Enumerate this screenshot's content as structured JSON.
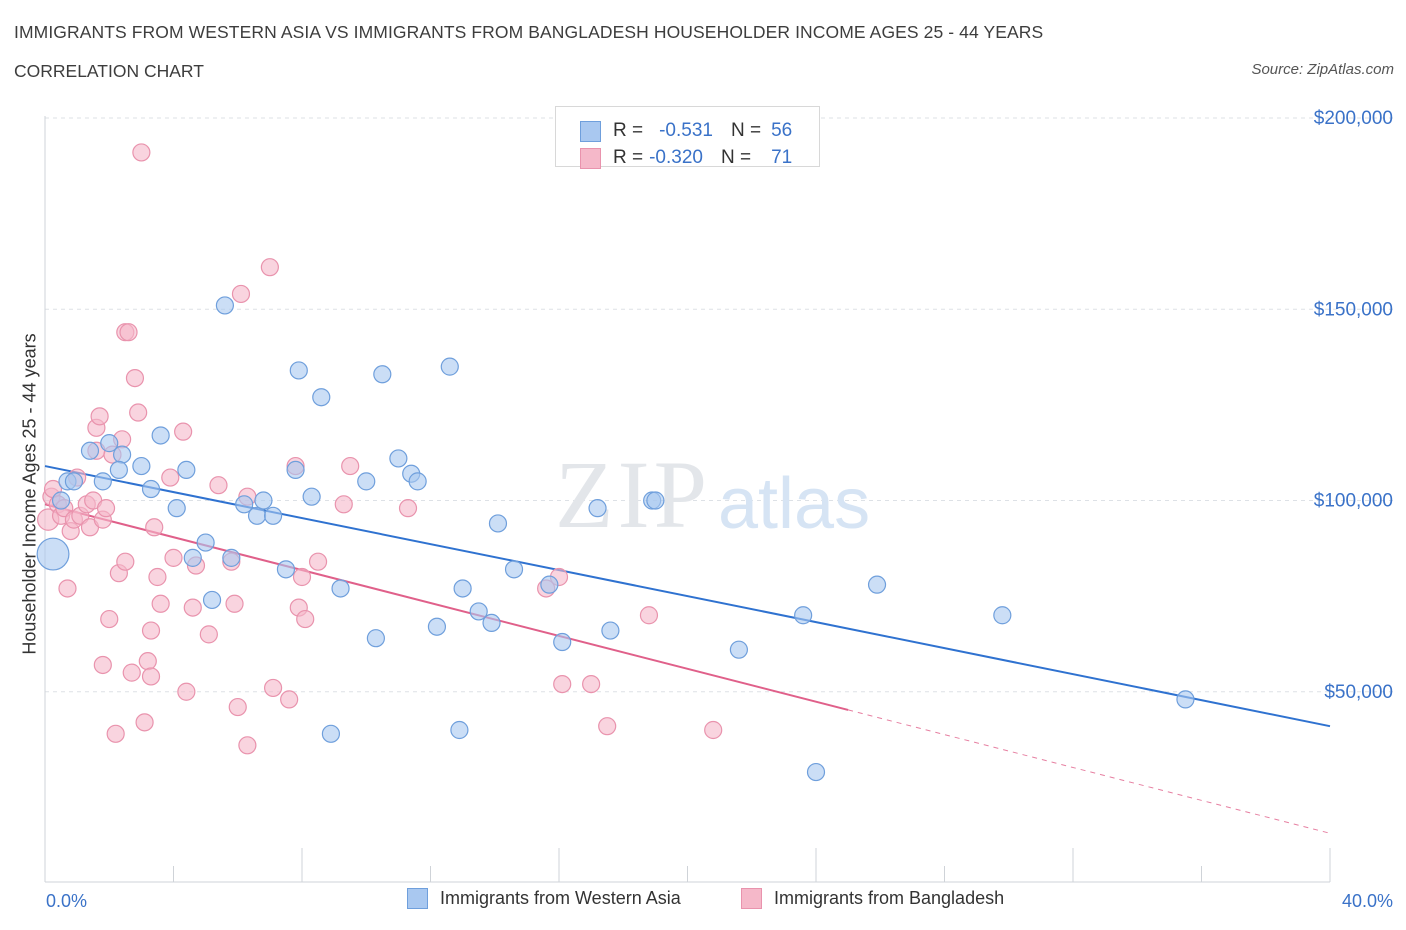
{
  "header": {
    "title": "IMMIGRANTS FROM WESTERN ASIA VS IMMIGRANTS FROM BANGLADESH HOUSEHOLDER INCOME AGES 25 - 44 YEARS",
    "subtitle": "CORRELATION CHART",
    "source": "Source: ZipAtlas.com"
  },
  "watermark": {
    "zip": "ZIP",
    "atlas": "atlas"
  },
  "legend_top": {
    "rows": [
      {
        "r_label": "R =",
        "r_value": "-0.531",
        "n_label": "N =",
        "n_value": "56",
        "color": "#a9c8f0"
      },
      {
        "r_label": "R =",
        "r_value": "-0.320",
        "n_label": "N =",
        "n_value": "71",
        "color": "#f5b8c9"
      }
    ]
  },
  "colors": {
    "blue_fill": "#a9c8f0",
    "blue_stroke": "#6f9fdc",
    "blue_line": "#2f72d0",
    "pink_fill": "#f5b8c9",
    "pink_stroke": "#e993ad",
    "pink_line": "#e0608a",
    "grid": "#dde1e6",
    "axis_label": "#3a72c8"
  },
  "chart_data": {
    "type": "scatter",
    "title": "IMMIGRANTS FROM WESTERN ASIA VS IMMIGRANTS FROM BANGLADESH HOUSEHOLDER INCOME AGES 25 - 44 YEARS",
    "xlabel": "",
    "ylabel": "Householder Income Ages 25 - 44 years",
    "xlim": [
      0,
      40
    ],
    "ylim": [
      0,
      200000
    ],
    "x_tick_labels": [
      "0.0%",
      "40.0%"
    ],
    "y_ticks": [
      50000,
      100000,
      150000,
      200000
    ],
    "y_tick_labels": [
      "$50,000",
      "$100,000",
      "$150,000",
      "$200,000"
    ],
    "grid": true,
    "legend_position": "bottom",
    "series": [
      {
        "name": "Immigrants from Western Asia",
        "color": "#a9c8f0",
        "trend": {
          "x": [
            0,
            40
          ],
          "y": [
            109000,
            41000
          ],
          "dashed_from_x": null
        },
        "points": [
          [
            0.25,
            86000,
            3
          ],
          [
            0.5,
            100000,
            1
          ],
          [
            0.7,
            105000,
            1
          ],
          [
            1.8,
            105000,
            1
          ],
          [
            1.4,
            113000,
            1
          ],
          [
            2.0,
            115000,
            1
          ],
          [
            2.4,
            112000,
            1
          ],
          [
            2.3,
            108000,
            1
          ],
          [
            3.0,
            109000,
            1
          ],
          [
            3.3,
            103000,
            1
          ],
          [
            3.6,
            117000,
            1
          ],
          [
            4.1,
            98000,
            1
          ],
          [
            4.4,
            108000,
            1
          ],
          [
            4.6,
            85000,
            1
          ],
          [
            5.0,
            89000,
            1
          ],
          [
            5.2,
            74000,
            1
          ],
          [
            5.6,
            151000,
            1
          ],
          [
            5.8,
            85000,
            1
          ],
          [
            6.2,
            99000,
            1
          ],
          [
            6.6,
            96000,
            1
          ],
          [
            6.8,
            100000,
            1
          ],
          [
            7.1,
            96000,
            1
          ],
          [
            7.5,
            82000,
            1
          ],
          [
            7.8,
            108000,
            1
          ],
          [
            7.9,
            134000,
            1
          ],
          [
            8.3,
            101000,
            1
          ],
          [
            8.6,
            127000,
            1
          ],
          [
            8.9,
            39000,
            1
          ],
          [
            9.2,
            77000,
            1
          ],
          [
            10.0,
            105000,
            1
          ],
          [
            10.3,
            64000,
            1
          ],
          [
            10.5,
            133000,
            1
          ],
          [
            11.0,
            111000,
            1
          ],
          [
            11.4,
            107000,
            1
          ],
          [
            11.6,
            105000,
            1
          ],
          [
            12.2,
            67000,
            1
          ],
          [
            12.6,
            135000,
            1
          ],
          [
            12.9,
            40000,
            1
          ],
          [
            13.0,
            77000,
            1
          ],
          [
            13.5,
            71000,
            1
          ],
          [
            13.9,
            68000,
            1
          ],
          [
            14.1,
            94000,
            1
          ],
          [
            14.6,
            82000,
            1
          ],
          [
            15.7,
            78000,
            1
          ],
          [
            16.1,
            63000,
            1
          ],
          [
            17.2,
            98000,
            1
          ],
          [
            17.6,
            66000,
            1
          ],
          [
            18.9,
            100000,
            1
          ],
          [
            19.0,
            100000,
            1
          ],
          [
            21.6,
            61000,
            1
          ],
          [
            23.6,
            70000,
            1
          ],
          [
            24.0,
            29000,
            1
          ],
          [
            25.9,
            78000,
            1
          ],
          [
            29.8,
            70000,
            1
          ],
          [
            35.5,
            48000,
            1
          ],
          [
            0.9,
            105000,
            1
          ]
        ]
      },
      {
        "name": "Immigrants from Bangladesh",
        "color": "#f5b8c9",
        "trend": {
          "x": [
            0,
            40
          ],
          "y": [
            99000,
            13000
          ],
          "dashed_from_x": 25
        },
        "points": [
          [
            0.1,
            95000,
            2
          ],
          [
            0.2,
            101000,
            1
          ],
          [
            0.25,
            103000,
            1
          ],
          [
            0.4,
            99000,
            1
          ],
          [
            0.5,
            96000,
            1
          ],
          [
            0.6,
            98000,
            1
          ],
          [
            0.7,
            77000,
            1
          ],
          [
            0.8,
            92000,
            1
          ],
          [
            0.9,
            95000,
            1
          ],
          [
            1.0,
            106000,
            1
          ],
          [
            1.1,
            96000,
            1
          ],
          [
            1.3,
            99000,
            1
          ],
          [
            1.4,
            93000,
            1
          ],
          [
            1.5,
            100000,
            1
          ],
          [
            1.6,
            113000,
            1
          ],
          [
            1.6,
            119000,
            1
          ],
          [
            1.7,
            122000,
            1
          ],
          [
            1.8,
            57000,
            1
          ],
          [
            1.8,
            95000,
            1
          ],
          [
            1.9,
            98000,
            1
          ],
          [
            2.0,
            69000,
            1
          ],
          [
            2.1,
            112000,
            1
          ],
          [
            2.2,
            39000,
            1
          ],
          [
            2.3,
            81000,
            1
          ],
          [
            2.4,
            116000,
            1
          ],
          [
            2.5,
            84000,
            1
          ],
          [
            2.5,
            144000,
            1
          ],
          [
            2.6,
            144000,
            1
          ],
          [
            2.7,
            55000,
            1
          ],
          [
            2.8,
            132000,
            1
          ],
          [
            2.9,
            123000,
            1
          ],
          [
            3.0,
            191000,
            1
          ],
          [
            3.1,
            42000,
            1
          ],
          [
            3.2,
            58000,
            1
          ],
          [
            3.3,
            66000,
            1
          ],
          [
            3.3,
            54000,
            1
          ],
          [
            3.4,
            93000,
            1
          ],
          [
            3.5,
            80000,
            1
          ],
          [
            3.6,
            73000,
            1
          ],
          [
            3.9,
            106000,
            1
          ],
          [
            4.0,
            85000,
            1
          ],
          [
            4.3,
            118000,
            1
          ],
          [
            4.4,
            50000,
            1
          ],
          [
            4.6,
            72000,
            1
          ],
          [
            4.7,
            83000,
            1
          ],
          [
            5.1,
            65000,
            1
          ],
          [
            5.4,
            104000,
            1
          ],
          [
            5.8,
            84000,
            1
          ],
          [
            5.9,
            73000,
            1
          ],
          [
            6.0,
            46000,
            1
          ],
          [
            6.1,
            154000,
            1
          ],
          [
            6.3,
            36000,
            1
          ],
          [
            6.3,
            101000,
            1
          ],
          [
            7.0,
            161000,
            1
          ],
          [
            7.1,
            51000,
            1
          ],
          [
            7.6,
            48000,
            1
          ],
          [
            7.8,
            109000,
            1
          ],
          [
            7.9,
            72000,
            1
          ],
          [
            8.0,
            80000,
            1
          ],
          [
            8.1,
            69000,
            1
          ],
          [
            8.5,
            84000,
            1
          ],
          [
            9.3,
            99000,
            1
          ],
          [
            9.5,
            109000,
            1
          ],
          [
            11.3,
            98000,
            1
          ],
          [
            15.6,
            77000,
            1
          ],
          [
            16.0,
            80000,
            1
          ],
          [
            16.1,
            52000,
            1
          ],
          [
            17.0,
            52000,
            1
          ],
          [
            17.5,
            41000,
            1
          ],
          [
            18.8,
            70000,
            1
          ],
          [
            20.8,
            40000,
            1
          ]
        ]
      }
    ]
  },
  "legend_bottom": {
    "items": [
      {
        "label": "Immigrants from Western Asia"
      },
      {
        "label": "Immigrants from Bangladesh"
      }
    ]
  }
}
